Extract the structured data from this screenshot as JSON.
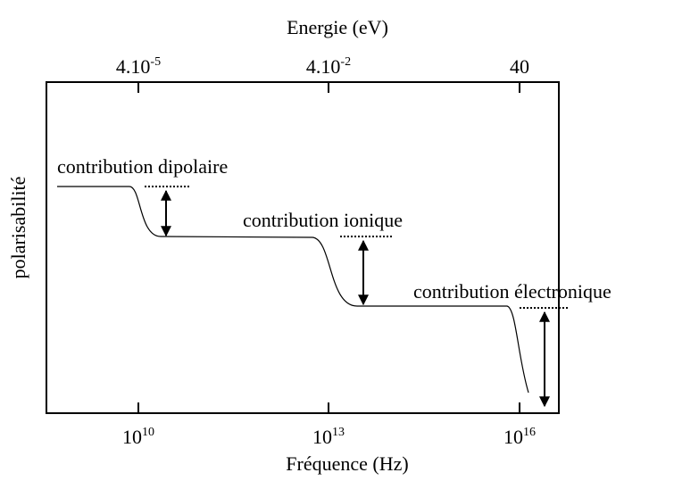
{
  "top_axis": {
    "label": "Energie (eV)",
    "ticks": [
      {
        "base": "4.10",
        "exp": "-5"
      },
      {
        "base": "4.10",
        "exp": "-2"
      },
      {
        "base": "40"
      }
    ]
  },
  "bottom_axis": {
    "label": "Fréquence (Hz)",
    "ticks": [
      {
        "base": "10",
        "exp": "10"
      },
      {
        "base": "10",
        "exp": "13"
      },
      {
        "base": "10",
        "exp": "16"
      }
    ]
  },
  "y_axis": {
    "label": "polarisabilité"
  },
  "annotations": [
    "contribution dipolaire",
    "contribution ionique",
    "contribution électronique"
  ]
}
